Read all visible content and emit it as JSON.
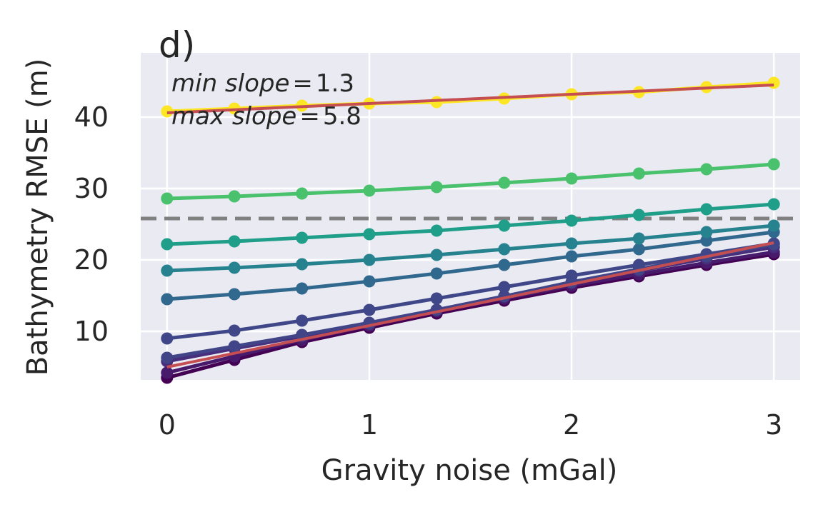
{
  "chart_data": {
    "type": "line",
    "panel_label": "d)",
    "xlabel": "Gravity noise (mGal)",
    "ylabel": "Bathymetry RMSE (m)",
    "xlim": [
      -0.13,
      3.13
    ],
    "ylim": [
      3.2,
      49
    ],
    "xticks": [
      0,
      1,
      2,
      3
    ],
    "yticks": [
      10,
      20,
      30,
      40
    ],
    "grid": true,
    "background_color": "#eaeaf2",
    "annotations": [
      {
        "text": "min slope = 1.3",
        "label": "min slope",
        "value": "1.3"
      },
      {
        "text": "max slope = 5.8",
        "label": "max slope",
        "value": "5.8"
      }
    ],
    "reference_line": {
      "y": 25.8,
      "style": "dashed",
      "color": "#808080"
    },
    "x": [
      0,
      0.333,
      0.667,
      1,
      1.333,
      1.667,
      2,
      2.333,
      2.667,
      3
    ],
    "series": [
      {
        "color": "#440154",
        "values": [
          3.5,
          6.0,
          8.5,
          10.5,
          12.5,
          14.3,
          16.1,
          17.7,
          19.3,
          20.8
        ]
      },
      {
        "color": "#481a6c",
        "values": [
          4.2,
          6.5,
          8.8,
          10.8,
          12.8,
          14.6,
          16.4,
          18.0,
          19.6,
          21.1
        ]
      },
      {
        "color": "#472f7d",
        "values": [
          5.8,
          7.6,
          9.3,
          11.0,
          13.0,
          14.9,
          16.8,
          18.5,
          20.2,
          21.8
        ]
      },
      {
        "color": "#414487",
        "values": [
          6.3,
          7.9,
          9.5,
          11.2,
          13.0,
          14.9,
          16.9,
          18.7,
          20.5,
          22.2
        ]
      },
      {
        "color": "#3f4788",
        "values": [
          9.0,
          10.1,
          11.5,
          13.0,
          14.6,
          16.2,
          17.8,
          19.3,
          20.8,
          22.3
        ]
      },
      {
        "color": "#31688e",
        "values": [
          14.5,
          15.2,
          16.0,
          17.0,
          18.1,
          19.3,
          20.5,
          21.5,
          22.7,
          23.9
        ]
      },
      {
        "color": "#26828e",
        "values": [
          18.5,
          18.9,
          19.4,
          20.0,
          20.7,
          21.5,
          22.3,
          23.0,
          23.9,
          24.8
        ]
      },
      {
        "color": "#1f9e89",
        "values": [
          22.2,
          22.6,
          23.1,
          23.6,
          24.1,
          24.8,
          25.5,
          26.3,
          27.1,
          27.8
        ]
      },
      {
        "color": "#4ac16d",
        "values": [
          28.6,
          28.9,
          29.3,
          29.7,
          30.2,
          30.8,
          31.4,
          32.1,
          32.7,
          33.4
        ]
      },
      {
        "color": "#fde725",
        "values": [
          40.8,
          41.2,
          41.6,
          41.9,
          42.1,
          42.6,
          43.2,
          43.5,
          44.2,
          44.8
        ]
      }
    ],
    "fit_lines": [
      {
        "color": "#c44e52",
        "x": [
          0,
          3
        ],
        "values": [
          40.6,
          44.5
        ]
      },
      {
        "color": "#c44e52",
        "x": [
          0,
          3
        ],
        "values": [
          5.0,
          22.4
        ]
      }
    ]
  }
}
